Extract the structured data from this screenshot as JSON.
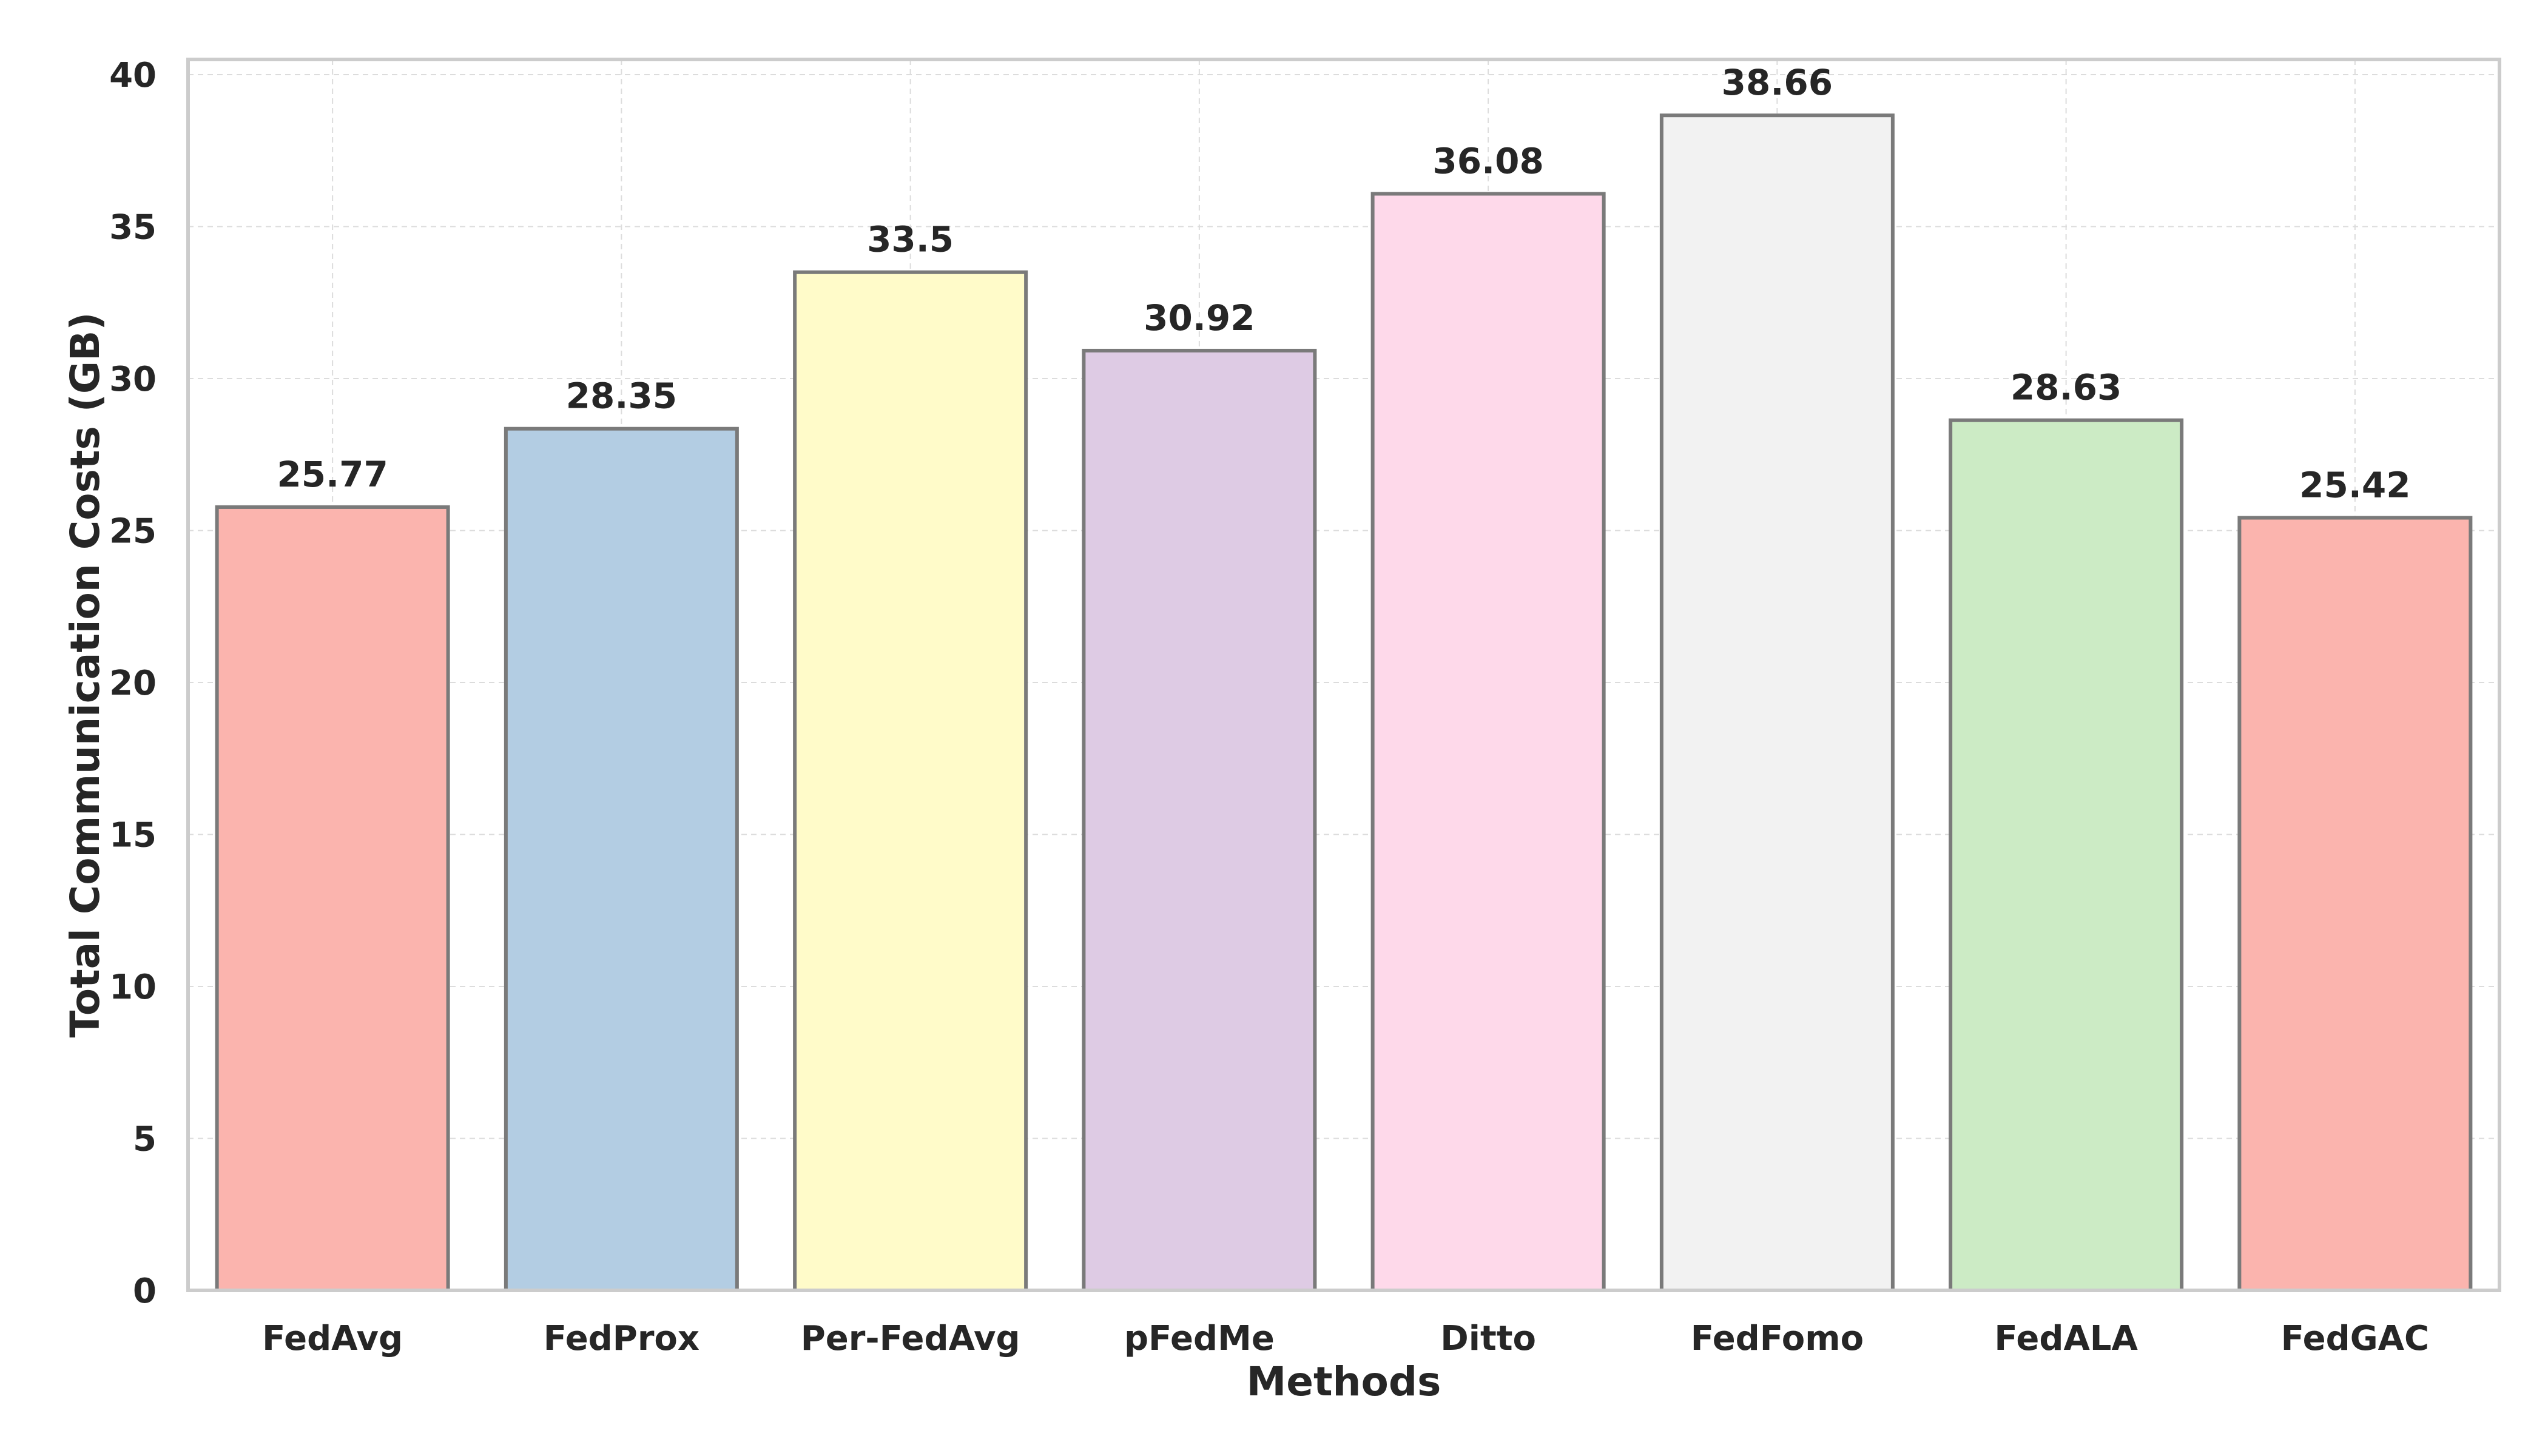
{
  "chart_data": {
    "type": "bar",
    "categories": [
      "FedAvg",
      "FedProx",
      "Per-FedAvg",
      "pFedMe",
      "Ditto",
      "FedFomo",
      "FedALA",
      "FedGAC"
    ],
    "values": [
      25.77,
      28.35,
      33.5,
      30.92,
      36.08,
      38.66,
      28.63,
      25.42
    ],
    "value_labels": [
      "25.77",
      "28.35",
      "33.5",
      "30.92",
      "36.08",
      "38.66",
      "28.63",
      "25.42"
    ],
    "colors": [
      "#fbb4ae",
      "#b3cde3",
      "#fffbc9",
      "#decbe4",
      "#fed9ea",
      "#f2f2f2",
      "#ccebc5",
      "#fbb4ae"
    ],
    "edge_color": "#7a7a7a",
    "xlabel": "Methods",
    "ylabel": "Total Communication Costs (GB)",
    "ylim": [
      0,
      40.5
    ],
    "yticks": [
      0,
      5,
      10,
      15,
      20,
      25,
      30,
      35,
      40
    ],
    "grid": true
  }
}
